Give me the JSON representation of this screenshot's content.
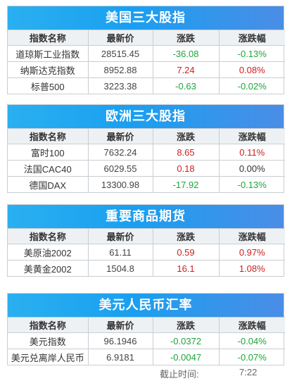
{
  "columns": [
    "指数名称",
    "最新价",
    "涨跌",
    "涨跌幅"
  ],
  "panels": [
    {
      "title": "美国三大股指",
      "rows": [
        {
          "name": "道琼斯工业指数",
          "price": "28515.45",
          "change": "-36.08",
          "pct": "-0.13%",
          "dir": "down"
        },
        {
          "name": "纳斯达克指数",
          "price": "8952.88",
          "change": "7.24",
          "pct": "0.08%",
          "dir": "up"
        },
        {
          "name": "标普500",
          "price": "3223.38",
          "change": "-0.63",
          "pct": "-0.02%",
          "dir": "down"
        }
      ]
    },
    {
      "title": "欧洲三大股指",
      "rows": [
        {
          "name": "富时100",
          "price": "7632.24",
          "change": "8.65",
          "pct": "0.11%",
          "dir": "up"
        },
        {
          "name": "法国CAC40",
          "price": "6029.55",
          "change": "0.18",
          "pct": "0.00%",
          "dir": "up",
          "pct_dir": "flat"
        },
        {
          "name": "德国DAX",
          "price": "13300.98",
          "change": "-17.92",
          "pct": "-0.13%",
          "dir": "down"
        }
      ]
    },
    {
      "title": "重要商品期货",
      "rows": [
        {
          "name": "美原油2002",
          "price": "61.11",
          "change": "0.59",
          "pct": "0.97%",
          "dir": "up"
        },
        {
          "name": "美黄金2002",
          "price": "1504.8",
          "change": "16.1",
          "pct": "1.08%",
          "dir": "up"
        }
      ]
    },
    {
      "title": "美元人民币汇率",
      "rows": [
        {
          "name": "美元指数",
          "price": "96.1946",
          "change": "-0.0372",
          "pct": "-0.04%",
          "dir": "down"
        },
        {
          "name": "美元兑离岸人民币",
          "price": "6.9181",
          "change": "-0.0047",
          "pct": "-0.07%",
          "dir": "down"
        }
      ]
    }
  ],
  "footer": {
    "label": "截止时间:",
    "time": "7:22"
  },
  "colors": {
    "up": "#cc1f1f",
    "down": "#1ea53a",
    "header_gradient_start": "#2ab0f0",
    "header_gradient_end": "#4a8de6"
  }
}
